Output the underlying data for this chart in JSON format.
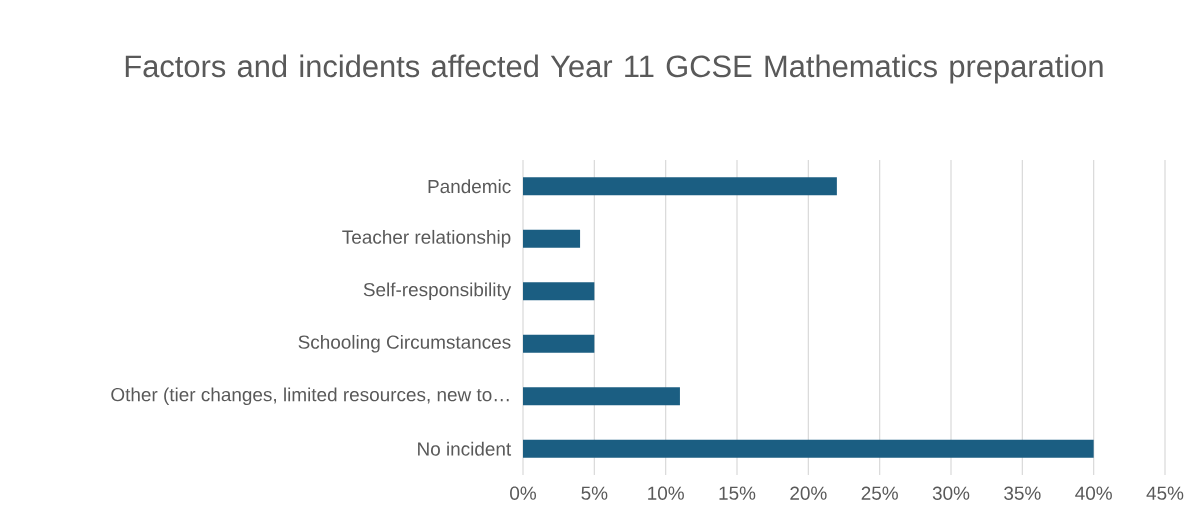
{
  "chart_data": {
    "type": "bar",
    "orientation": "horizontal",
    "title": "Factors and incidents affected Year 11 GCSE Mathematics preparation",
    "categories": [
      "Pandemic",
      "Teacher relationship",
      "Self-responsibility",
      "Schooling Circumstances",
      "Other (tier changes, limited resources, new to…",
      "No incident"
    ],
    "values": [
      22,
      4,
      5,
      5,
      11,
      40
    ],
    "color": "#1b5e82",
    "xlim": [
      0,
      45
    ],
    "xticks": [
      {
        "value": 0,
        "label": "0%"
      },
      {
        "value": 5,
        "label": "5%"
      },
      {
        "value": 10,
        "label": "10%"
      },
      {
        "value": 15,
        "label": "15%"
      },
      {
        "value": 20,
        "label": "20%"
      },
      {
        "value": 25,
        "label": "25%"
      },
      {
        "value": 30,
        "label": "30%"
      },
      {
        "value": 35,
        "label": "35%"
      },
      {
        "value": 40,
        "label": "40%"
      },
      {
        "value": 45,
        "label": "45%"
      }
    ],
    "grid": "x"
  }
}
